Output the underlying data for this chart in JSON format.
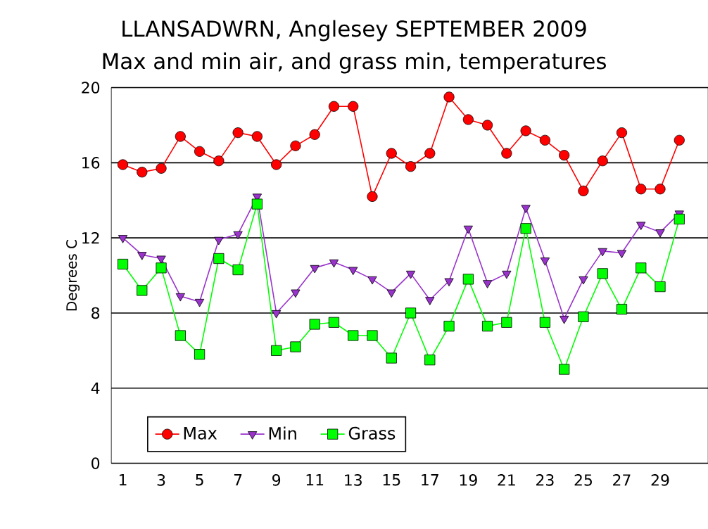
{
  "chart_data": {
    "type": "line",
    "title": "LLANSADWRN, Anglesey SEPTEMBER 2009",
    "subtitle": "Max and min air, and grass min, temperatures",
    "ylabel": "Degrees C",
    "x": [
      1,
      2,
      3,
      4,
      5,
      6,
      7,
      8,
      9,
      10,
      11,
      12,
      13,
      14,
      15,
      16,
      17,
      18,
      19,
      20,
      21,
      22,
      23,
      24,
      25,
      26,
      27,
      28,
      29,
      30
    ],
    "xlim": [
      0.4,
      31.5
    ],
    "xticks": [
      1,
      3,
      5,
      7,
      9,
      11,
      13,
      15,
      17,
      19,
      21,
      23,
      25,
      27,
      29
    ],
    "ylim": [
      0,
      20
    ],
    "yticks": [
      0,
      4,
      8,
      12,
      16,
      20
    ],
    "grid": "y",
    "legend": "bottom left",
    "series": [
      {
        "name": "Max",
        "color": "#ff0000",
        "marker": "circle",
        "values": [
          15.9,
          15.5,
          15.7,
          17.4,
          16.6,
          16.1,
          17.6,
          17.4,
          15.9,
          16.9,
          17.5,
          19.0,
          19.0,
          14.2,
          16.5,
          15.8,
          16.5,
          19.5,
          18.3,
          18.0,
          16.5,
          17.7,
          17.2,
          16.4,
          14.5,
          16.1,
          17.6,
          14.6,
          14.6,
          17.2
        ]
      },
      {
        "name": "Min",
        "color": "#9933cc",
        "marker": "triangle",
        "values": [
          12.0,
          11.1,
          10.9,
          8.9,
          8.6,
          11.9,
          12.2,
          14.2,
          8.0,
          9.1,
          10.4,
          10.7,
          10.3,
          9.8,
          9.1,
          10.1,
          8.7,
          9.7,
          12.5,
          9.6,
          10.1,
          13.6,
          10.8,
          7.7,
          9.8,
          11.3,
          11.2,
          12.7,
          12.3,
          13.3
        ]
      },
      {
        "name": "Grass",
        "color": "#00ff00",
        "marker": "square",
        "values": [
          10.6,
          9.2,
          10.4,
          6.8,
          5.8,
          10.9,
          10.3,
          13.8,
          6.0,
          6.2,
          7.4,
          7.5,
          6.8,
          6.8,
          5.6,
          8.0,
          5.5,
          7.3,
          9.8,
          7.3,
          7.5,
          12.5,
          7.5,
          5.0,
          7.8,
          10.1,
          8.2,
          10.4,
          9.4,
          13.0
        ]
      }
    ]
  }
}
